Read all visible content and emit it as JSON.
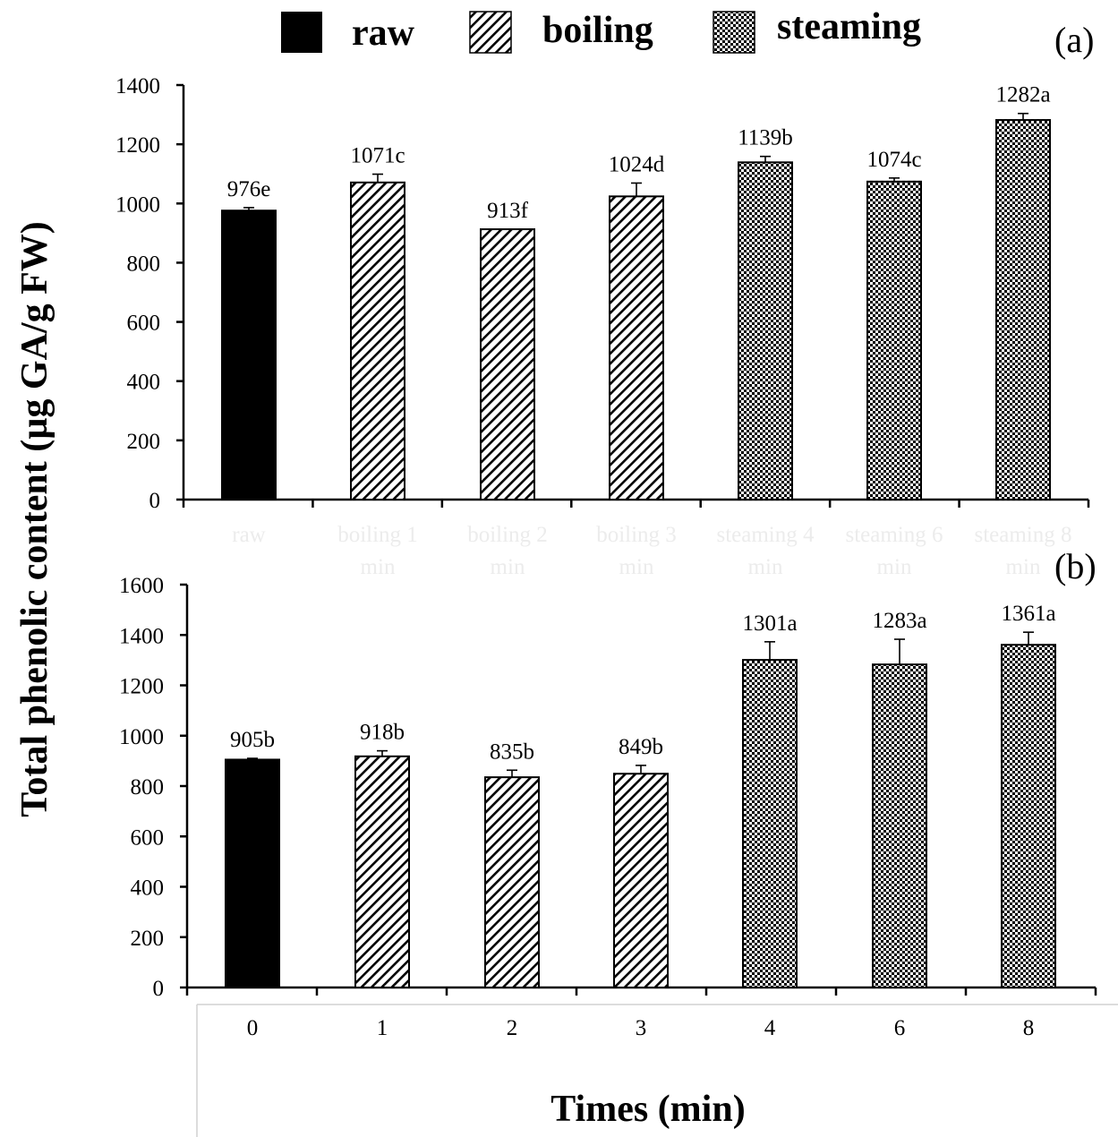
{
  "legend": [
    {
      "label": "raw",
      "pattern": "solid"
    },
    {
      "label": "boiling",
      "pattern": "hatch"
    },
    {
      "label": "steaming",
      "pattern": "checker"
    }
  ],
  "y_axis_label": "Total phenolic content  (µg GA/g FW)",
  "x_axis_label": "Times (min)",
  "colors": {
    "bar_fill": "#000000",
    "axis": "#000000",
    "background": "#ffffff"
  },
  "chart_data": [
    {
      "type": "bar",
      "panel_label": "(a)",
      "categories": [
        "raw",
        "boiling 1 min",
        "boiling 2 min",
        "boiling 3 min",
        "steaming 4 min",
        "steaming 6 min",
        "steaming 8 min"
      ],
      "values": [
        976,
        1071,
        913,
        1024,
        1139,
        1074,
        1282
      ],
      "errors": [
        10,
        28,
        0,
        45,
        20,
        12,
        22
      ],
      "labels": [
        "976e",
        "1071c",
        "913f",
        "1024d",
        "1139b",
        "1074c",
        "1282a"
      ],
      "patterns": [
        "solid",
        "hatch",
        "hatch",
        "hatch",
        "checker",
        "checker",
        "checker"
      ],
      "ylim": [
        0,
        1400
      ],
      "yticks": [
        0,
        200,
        400,
        600,
        800,
        1000,
        1200,
        1400
      ]
    },
    {
      "type": "bar",
      "panel_label": "(b)",
      "categories": [
        "0",
        "1",
        "2",
        "3",
        "4",
        "6",
        "8"
      ],
      "values": [
        905,
        918,
        835,
        849,
        1301,
        1283,
        1361
      ],
      "errors": [
        5,
        22,
        28,
        33,
        72,
        100,
        50
      ],
      "labels": [
        "905b",
        "918b",
        "835b",
        "849b",
        "1301a",
        "1283a",
        "1361a"
      ],
      "patterns": [
        "solid",
        "hatch",
        "hatch",
        "hatch",
        "checker",
        "checker",
        "checker"
      ],
      "ylim": [
        0,
        1600
      ],
      "yticks": [
        0,
        200,
        400,
        600,
        800,
        1000,
        1200,
        1400,
        1600
      ]
    }
  ]
}
